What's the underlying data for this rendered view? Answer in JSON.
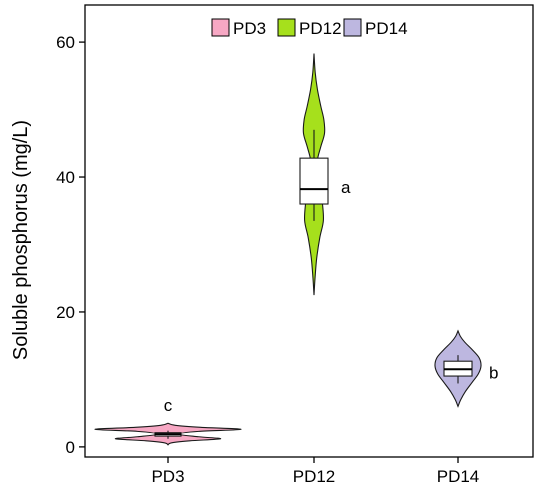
{
  "chart_data": {
    "type": "violin",
    "title": "",
    "xlabel": "",
    "ylabel": "Soluble phosphorus (mg/L)",
    "ylim": [
      -1.5,
      65.5
    ],
    "yticks": [
      0,
      20,
      40,
      60
    ],
    "categories": [
      "PD3",
      "PD12",
      "PD14"
    ],
    "grid": false,
    "legend": {
      "position": "top",
      "entries": [
        "PD3",
        "PD12",
        "PD14"
      ]
    },
    "series": [
      {
        "name": "PD3",
        "color": "#f7a8c4",
        "letter": "c",
        "violin_range": [
          0.3,
          3.5
        ],
        "box": {
          "q1": 1.6,
          "median": 1.9,
          "q3": 2.1,
          "whisker_low": 1.2,
          "whisker_high": 2.4
        },
        "density": [
          {
            "y": 0.3,
            "w": 0.0
          },
          {
            "y": 0.6,
            "w": 0.05
          },
          {
            "y": 0.9,
            "w": 0.3
          },
          {
            "y": 1.2,
            "w": 0.72
          },
          {
            "y": 1.5,
            "w": 0.42
          },
          {
            "y": 1.9,
            "w": 0.15
          },
          {
            "y": 2.3,
            "w": 0.42
          },
          {
            "y": 2.6,
            "w": 1.0
          },
          {
            "y": 2.9,
            "w": 0.45
          },
          {
            "y": 3.2,
            "w": 0.1
          },
          {
            "y": 3.5,
            "w": 0.0
          }
        ]
      },
      {
        "name": "PD12",
        "color": "#a6e01c",
        "letter": "a",
        "violin_range": [
          22.5,
          58.3
        ],
        "box": {
          "q1": 36.0,
          "median": 38.2,
          "q3": 42.8,
          "whisker_low": 33.5,
          "whisker_high": 47.0
        },
        "density": [
          {
            "y": 22.5,
            "w": 0.0
          },
          {
            "y": 25,
            "w": 0.06
          },
          {
            "y": 28,
            "w": 0.16
          },
          {
            "y": 31,
            "w": 0.34
          },
          {
            "y": 33.5,
            "w": 0.55
          },
          {
            "y": 36,
            "w": 0.5
          },
          {
            "y": 38.5,
            "w": 0.38
          },
          {
            "y": 40.5,
            "w": 0.22
          },
          {
            "y": 42.5,
            "w": 0.2
          },
          {
            "y": 44.5,
            "w": 0.4
          },
          {
            "y": 46.5,
            "w": 0.62
          },
          {
            "y": 48.5,
            "w": 0.58
          },
          {
            "y": 50.5,
            "w": 0.4
          },
          {
            "y": 53,
            "w": 0.2
          },
          {
            "y": 55.5,
            "w": 0.07
          },
          {
            "y": 58.3,
            "w": 0.0
          }
        ]
      },
      {
        "name": "PD14",
        "color": "#bdb7e0",
        "letter": "b",
        "violin_range": [
          6.0,
          17.2
        ],
        "box": {
          "q1": 10.5,
          "median": 11.5,
          "q3": 12.7,
          "whisker_low": 9.4,
          "whisker_high": 13.6
        },
        "density": [
          {
            "y": 6.0,
            "w": 0.0
          },
          {
            "y": 7.0,
            "w": 0.12
          },
          {
            "y": 8.2,
            "w": 0.32
          },
          {
            "y": 9.5,
            "w": 0.6
          },
          {
            "y": 10.8,
            "w": 0.88
          },
          {
            "y": 12.0,
            "w": 1.0
          },
          {
            "y": 13.2,
            "w": 0.92
          },
          {
            "y": 14.4,
            "w": 0.62
          },
          {
            "y": 15.5,
            "w": 0.3
          },
          {
            "y": 16.4,
            "w": 0.1
          },
          {
            "y": 17.2,
            "w": 0.0
          }
        ]
      }
    ]
  }
}
